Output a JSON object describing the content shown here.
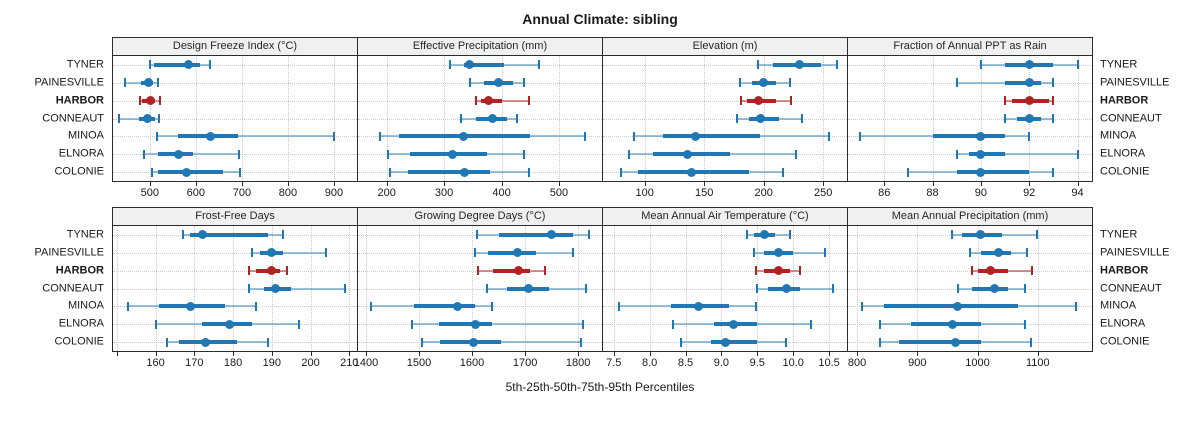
{
  "chart_data": {
    "type": "errorbar",
    "title": "Annual Climate: sibling",
    "xlabel": "5th-25th-50th-75th-95th Percentiles",
    "percentile_labels": [
      "5th",
      "25th",
      "50th",
      "75th",
      "95th"
    ],
    "categories": [
      "TYNER",
      "PAINESVILLE",
      "HARBOR",
      "CONNEAUT",
      "MINOA",
      "ELNORA",
      "COLONIE"
    ],
    "highlight_category": "HARBOR",
    "colors": {
      "series": "#1f77b4",
      "highlight": "#b22222",
      "whisker_series": "rgba(31,119,180,0.45)",
      "whisker_highlight": "rgba(178,34,34,0.5)",
      "header_bg": "#f0f0f0",
      "grid": "#cacaca"
    },
    "legend_position": "none",
    "grid": "dotted",
    "panels": [
      {
        "title": "Design Freeze Index (°C)",
        "row": 0,
        "xlim": [
          420,
          950
        ],
        "ticks": [
          {
            "v": 500,
            "l": "500"
          },
          {
            "v": 600,
            "l": "600"
          },
          {
            "v": 700,
            "l": "700"
          },
          {
            "v": 800,
            "l": "800"
          },
          {
            "v": 900,
            "l": "900"
          }
        ],
        "values": {
          "TYNER": [
            500,
            510,
            585,
            608,
            630
          ],
          "PAINESVILLE": [
            447,
            480,
            498,
            508,
            518
          ],
          "HARBOR": [
            478,
            484,
            501,
            512,
            523
          ],
          "CONNEAUT": [
            433,
            476,
            494,
            512,
            521
          ],
          "MINOA": [
            515,
            562,
            632,
            692,
            900
          ],
          "ELNORA": [
            487,
            518,
            562,
            593,
            693
          ],
          "COLONIE": [
            504,
            518,
            580,
            658,
            695
          ]
        }
      },
      {
        "title": "Effective Precipitation (mm)",
        "row": 0,
        "xlim": [
          150,
          575
        ],
        "ticks": [
          {
            "v": 200,
            "l": "200"
          },
          {
            "v": 300,
            "l": "300"
          },
          {
            "v": 400,
            "l": "400"
          },
          {
            "v": 500,
            "l": "500"
          }
        ],
        "values": {
          "TYNER": [
            310,
            335,
            345,
            405,
            465
          ],
          "PAINESVILLE": [
            345,
            370,
            395,
            420,
            440
          ],
          "HARBOR": [
            355,
            365,
            378,
            400,
            448
          ],
          "CONNEAUT": [
            330,
            355,
            385,
            410,
            427
          ],
          "MINOA": [
            188,
            222,
            333,
            450,
            545
          ],
          "ELNORA": [
            203,
            240,
            315,
            375,
            440
          ],
          "COLONIE": [
            205,
            237,
            335,
            380,
            447
          ]
        }
      },
      {
        "title": "Elevation (m)",
        "row": 0,
        "xlim": [
          65,
          270
        ],
        "ticks": [
          {
            "v": 100,
            "l": "100"
          },
          {
            "v": 150,
            "l": "150"
          },
          {
            "v": 200,
            "l": "200"
          },
          {
            "v": 250,
            "l": "250"
          }
        ],
        "values": {
          "TYNER": [
            195,
            208,
            230,
            248,
            262
          ],
          "PAINESVILLE": [
            180,
            190,
            200,
            210,
            222
          ],
          "HARBOR": [
            181,
            186,
            196,
            210,
            223
          ],
          "CONNEAUT": [
            178,
            188,
            197,
            213,
            232
          ],
          "MINOA": [
            91,
            115,
            143,
            197,
            255
          ],
          "ELNORA": [
            87,
            107,
            136,
            172,
            227
          ],
          "COLONIE": [
            80,
            94,
            139,
            188,
            216
          ]
        }
      },
      {
        "title": "Fraction of Annual PPT as Rain",
        "row": 0,
        "xlim": [
          84.5,
          94.6
        ],
        "ticks": [
          {
            "v": 86,
            "l": "86"
          },
          {
            "v": 88,
            "l": "88"
          },
          {
            "v": 90,
            "l": "90"
          },
          {
            "v": 92,
            "l": "92"
          },
          {
            "v": 94,
            "l": "94"
          }
        ],
        "values": {
          "TYNER": [
            90,
            91,
            92,
            93,
            94
          ],
          "PAINESVILLE": [
            89,
            91,
            92,
            92.5,
            93
          ],
          "HARBOR": [
            91,
            91.3,
            92,
            92.8,
            93
          ],
          "CONNEAUT": [
            91,
            91.5,
            92,
            92.5,
            93
          ],
          "MINOA": [
            85,
            88,
            90,
            91,
            92
          ],
          "ELNORA": [
            89,
            89.5,
            90,
            91,
            94
          ],
          "COLONIE": [
            87,
            89,
            90,
            92,
            93
          ]
        }
      },
      {
        "title": "Frost-Free Days",
        "row": 1,
        "xlim": [
          149,
          212
        ],
        "ticks": [
          {
            "v": 150,
            "l": ""
          },
          {
            "v": 160,
            "l": "160"
          },
          {
            "v": 170,
            "l": "170"
          },
          {
            "v": 180,
            "l": "180"
          },
          {
            "v": 190,
            "l": "190"
          },
          {
            "v": 200,
            "l": "200"
          },
          {
            "v": 210,
            "l": "210"
          }
        ],
        "values": {
          "TYNER": [
            167,
            169,
            172,
            189,
            193
          ],
          "PAINESVILLE": [
            185,
            187,
            190,
            193,
            204
          ],
          "HARBOR": [
            184,
            186,
            190,
            192,
            194
          ],
          "CONNEAUT": [
            184,
            188,
            191,
            195,
            209
          ],
          "MINOA": [
            153,
            161,
            169,
            178,
            186
          ],
          "ELNORA": [
            160,
            172,
            179,
            185,
            197
          ],
          "COLONIE": [
            163,
            166,
            173,
            181,
            189
          ]
        }
      },
      {
        "title": "Growing Degree Days (°C)",
        "row": 1,
        "xlim": [
          1385,
          1845
        ],
        "ticks": [
          {
            "v": 1400,
            "l": "1400"
          },
          {
            "v": 1500,
            "l": "1500"
          },
          {
            "v": 1600,
            "l": "1600"
          },
          {
            "v": 1700,
            "l": "1700"
          },
          {
            "v": 1800,
            "l": "1800"
          }
        ],
        "values": {
          "TYNER": [
            1610,
            1650,
            1750,
            1790,
            1820
          ],
          "PAINESVILLE": [
            1605,
            1630,
            1685,
            1720,
            1790
          ],
          "HARBOR": [
            1612,
            1640,
            1688,
            1710,
            1738
          ],
          "CONNEAUT": [
            1628,
            1665,
            1707,
            1745,
            1815
          ],
          "MINOA": [
            1410,
            1490,
            1573,
            1605,
            1638
          ],
          "ELNORA": [
            1487,
            1537,
            1607,
            1637,
            1810
          ],
          "COLONIE": [
            1505,
            1540,
            1603,
            1655,
            1805
          ]
        }
      },
      {
        "title": "Mean Annual Air Temperature (°C)",
        "row": 1,
        "xlim": [
          7.35,
          10.75
        ],
        "ticks": [
          {
            "v": 7.5,
            "l": "7.5"
          },
          {
            "v": 8,
            "l": "8.0"
          },
          {
            "v": 8.5,
            "l": "8.5"
          },
          {
            "v": 9,
            "l": "9.0"
          },
          {
            "v": 9.5,
            "l": "9.5"
          },
          {
            "v": 10,
            "l": "10.0"
          },
          {
            "v": 10.5,
            "l": "10.5"
          }
        ],
        "values": {
          "TYNER": [
            9.35,
            9.45,
            9.6,
            9.75,
            9.95
          ],
          "PAINESVILLE": [
            9.45,
            9.6,
            9.8,
            10.0,
            10.45
          ],
          "HARBOR": [
            9.48,
            9.6,
            9.8,
            9.95,
            10.1
          ],
          "CONNEAUT": [
            9.5,
            9.65,
            9.9,
            10.1,
            10.55
          ],
          "MINOA": [
            7.57,
            8.3,
            8.68,
            9.1,
            9.48
          ],
          "ELNORA": [
            8.33,
            8.9,
            9.17,
            9.5,
            10.25
          ],
          "COLONIE": [
            8.43,
            8.85,
            9.05,
            9.5,
            9.9
          ]
        }
      },
      {
        "title": "Mean Annual Precipitation (mm)",
        "row": 1,
        "xlim": [
          785,
          1190
        ],
        "ticks": [
          {
            "v": 800,
            "l": "800"
          },
          {
            "v": 900,
            "l": "900"
          },
          {
            "v": 1000,
            "l": "1000"
          },
          {
            "v": 1100,
            "l": "1100"
          }
        ],
        "values": {
          "TYNER": [
            957,
            975,
            1005,
            1040,
            1098
          ],
          "PAINESVILLE": [
            988,
            1005,
            1035,
            1055,
            1082
          ],
          "HARBOR": [
            990,
            1000,
            1022,
            1050,
            1090
          ],
          "CONNEAUT": [
            968,
            990,
            1028,
            1050,
            1078
          ],
          "MINOA": [
            808,
            845,
            967,
            1068,
            1163
          ],
          "ELNORA": [
            838,
            890,
            958,
            1005,
            1078
          ],
          "COLONIE": [
            838,
            870,
            963,
            1005,
            1088
          ]
        }
      }
    ]
  }
}
